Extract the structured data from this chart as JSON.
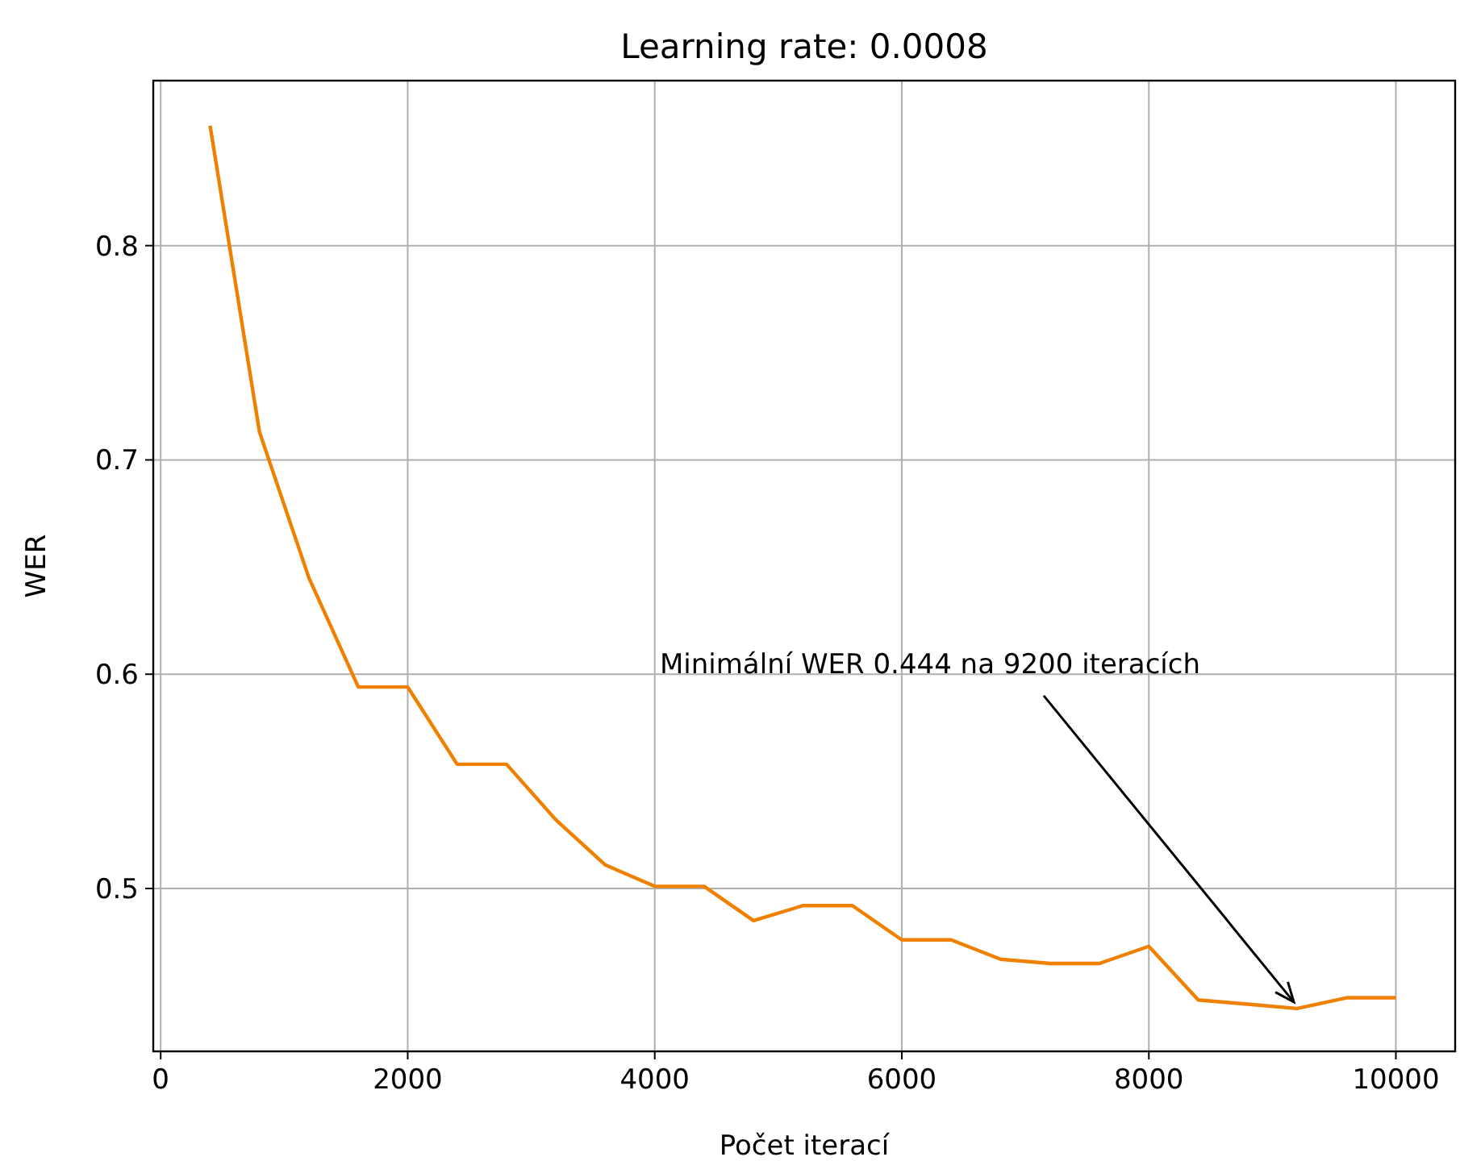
{
  "chart_data": {
    "type": "line",
    "title": "Learning rate: 0.0008",
    "xlabel": "Počet iterací",
    "ylabel": "WER",
    "x": [
      400,
      800,
      1200,
      1600,
      2000,
      2400,
      2800,
      3200,
      3600,
      4000,
      4400,
      4800,
      5200,
      5600,
      6000,
      6400,
      6800,
      7200,
      7600,
      8000,
      8400,
      8800,
      9200,
      9600,
      10000
    ],
    "series": [
      {
        "color": "#f08000",
        "values": [
          0.856,
          0.713,
          0.645,
          0.594,
          0.594,
          0.558,
          0.558,
          0.532,
          0.511,
          0.501,
          0.501,
          0.485,
          0.492,
          0.492,
          0.476,
          0.476,
          0.467,
          0.465,
          0.465,
          0.473,
          0.448,
          0.446,
          0.444,
          0.449,
          0.449
        ]
      }
    ],
    "xlim": [
      -60,
      10480
    ],
    "ylim": [
      0.424,
      0.877
    ],
    "xticks": [
      0,
      2000,
      4000,
      6000,
      8000,
      10000
    ],
    "yticks": [
      0.5,
      0.6,
      0.7,
      0.8
    ],
    "grid": true,
    "marker": "none",
    "line_style": "solid",
    "annotations": [
      {
        "text": "Minimální WER 0.444 na 9200 iteracích",
        "x": 9200,
        "y": 0.444
      }
    ]
  }
}
